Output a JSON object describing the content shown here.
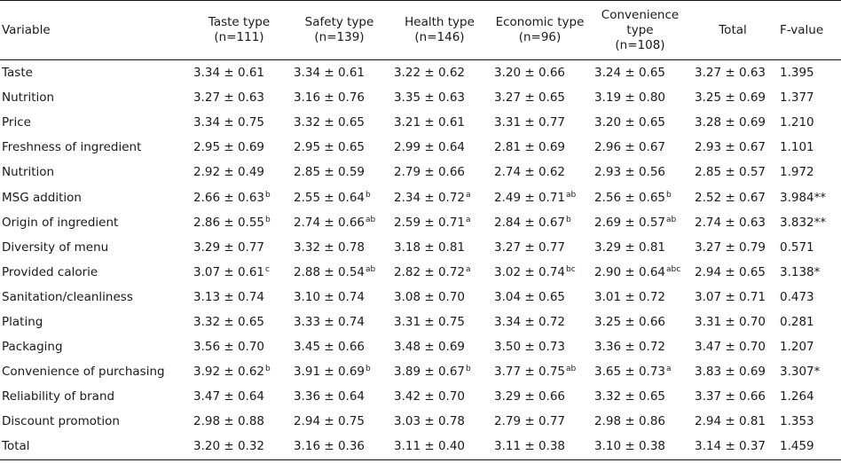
{
  "table": {
    "headers": [
      "Variable",
      "Taste type\n(n=111)",
      "Safety type\n(n=139)",
      "Health type\n(n=146)",
      "Economic type\n(n=96)",
      "Convenience\ntype\n(n=108)",
      "Total",
      "F-value"
    ],
    "rows": [
      {
        "label": "Taste",
        "cells": [
          [
            "3.34 ± 0.61",
            ""
          ],
          [
            "3.34 ± 0.61",
            ""
          ],
          [
            "3.22 ± 0.62",
            ""
          ],
          [
            "3.20 ± 0.66",
            ""
          ],
          [
            "3.24 ± 0.65",
            ""
          ],
          [
            "3.27 ± 0.63",
            ""
          ]
        ],
        "f": "1.395"
      },
      {
        "label": "Nutrition",
        "cells": [
          [
            "3.27 ± 0.63",
            ""
          ],
          [
            "3.16 ± 0.76",
            ""
          ],
          [
            "3.35 ± 0.63",
            ""
          ],
          [
            "3.27 ± 0.65",
            ""
          ],
          [
            "3.19 ± 0.80",
            ""
          ],
          [
            "3.25 ± 0.69",
            ""
          ]
        ],
        "f": "1.377"
      },
      {
        "label": "Price",
        "cells": [
          [
            "3.34 ± 0.75",
            ""
          ],
          [
            "3.32 ± 0.65",
            ""
          ],
          [
            "3.21 ± 0.61",
            ""
          ],
          [
            "3.31 ± 0.77",
            ""
          ],
          [
            "3.20 ± 0.65",
            ""
          ],
          [
            "3.28 ± 0.69",
            ""
          ]
        ],
        "f": "1.210"
      },
      {
        "label": "Freshness of ingredient",
        "cells": [
          [
            "2.95 ± 0.69",
            ""
          ],
          [
            "2.95 ± 0.65",
            ""
          ],
          [
            "2.99 ± 0.64",
            ""
          ],
          [
            "2.81 ± 0.69",
            ""
          ],
          [
            "2.96 ± 0.67",
            ""
          ],
          [
            "2.93 ± 0.67",
            ""
          ]
        ],
        "f": "1.101"
      },
      {
        "label": "Nutrition",
        "cells": [
          [
            "2.92 ± 0.49",
            ""
          ],
          [
            "2.85 ± 0.59",
            ""
          ],
          [
            "2.79 ± 0.66",
            ""
          ],
          [
            "2.74 ± 0.62",
            ""
          ],
          [
            "2.93 ± 0.56",
            ""
          ],
          [
            "2.85 ± 0.57",
            ""
          ]
        ],
        "f": "1.972"
      },
      {
        "label": "MSG addition",
        "cells": [
          [
            "2.66 ± 0.63",
            "b"
          ],
          [
            "2.55 ± 0.64",
            "b"
          ],
          [
            "2.34 ± 0.72",
            "a"
          ],
          [
            "2.49 ± 0.71",
            "ab"
          ],
          [
            "2.56 ± 0.65",
            "b"
          ],
          [
            "2.52 ± 0.67",
            ""
          ]
        ],
        "f": "3.984**"
      },
      {
        "label": "Origin of ingredient",
        "cells": [
          [
            "2.86 ± 0.55",
            "b"
          ],
          [
            "2.74 ± 0.66",
            "ab"
          ],
          [
            "2.59 ± 0.71",
            "a"
          ],
          [
            "2.84 ± 0.67",
            "b"
          ],
          [
            "2.69 ± 0.57",
            "ab"
          ],
          [
            "2.74 ± 0.63",
            ""
          ]
        ],
        "f": "3.832**"
      },
      {
        "label": "Diversity of menu",
        "cells": [
          [
            "3.29 ± 0.77",
            ""
          ],
          [
            "3.32 ± 0.78",
            ""
          ],
          [
            "3.18 ± 0.81",
            ""
          ],
          [
            "3.27 ± 0.77",
            ""
          ],
          [
            "3.29 ± 0.81",
            ""
          ],
          [
            "3.27 ± 0.79",
            ""
          ]
        ],
        "f": "0.571"
      },
      {
        "label": "Provided calorie",
        "cells": [
          [
            "3.07 ± 0.61",
            "c"
          ],
          [
            "2.88 ± 0.54",
            "ab"
          ],
          [
            "2.82 ± 0.72",
            "a"
          ],
          [
            "3.02 ± 0.74",
            "bc"
          ],
          [
            "2.90 ± 0.64",
            "abc"
          ],
          [
            "2.94 ± 0.65",
            ""
          ]
        ],
        "f": "3.138*"
      },
      {
        "label": "Sanitation/cleanliness",
        "cells": [
          [
            "3.13 ± 0.74",
            ""
          ],
          [
            "3.10 ± 0.74",
            ""
          ],
          [
            "3.08 ± 0.70",
            ""
          ],
          [
            "3.04 ± 0.65",
            ""
          ],
          [
            "3.01 ± 0.72",
            ""
          ],
          [
            "3.07 ± 0.71",
            ""
          ]
        ],
        "f": "0.473"
      },
      {
        "label": "Plating",
        "cells": [
          [
            "3.32 ± 0.65",
            ""
          ],
          [
            "3.33 ± 0.74",
            ""
          ],
          [
            "3.31 ± 0.75",
            ""
          ],
          [
            "3.34 ± 0.72",
            ""
          ],
          [
            "3.25 ± 0.66",
            ""
          ],
          [
            "3.31 ± 0.70",
            ""
          ]
        ],
        "f": "0.281"
      },
      {
        "label": "Packaging",
        "cells": [
          [
            "3.56 ± 0.70",
            ""
          ],
          [
            "3.45 ± 0.66",
            ""
          ],
          [
            "3.48 ± 0.69",
            ""
          ],
          [
            "3.50 ± 0.73",
            ""
          ],
          [
            "3.36 ± 0.72",
            ""
          ],
          [
            "3.47 ± 0.70",
            ""
          ]
        ],
        "f": "1.207"
      },
      {
        "label": "Convenience of purchasing",
        "cells": [
          [
            "3.92 ± 0.62",
            "b"
          ],
          [
            "3.91 ± 0.69",
            "b"
          ],
          [
            "3.89 ± 0.67",
            "b"
          ],
          [
            "3.77 ± 0.75",
            "ab"
          ],
          [
            "3.65 ± 0.73",
            "a"
          ],
          [
            "3.83 ± 0.69",
            ""
          ]
        ],
        "f": "3.307*"
      },
      {
        "label": "Reliability of brand",
        "cells": [
          [
            "3.47 ± 0.64",
            ""
          ],
          [
            "3.36 ± 0.64",
            ""
          ],
          [
            "3.42 ± 0.70",
            ""
          ],
          [
            "3.29 ± 0.66",
            ""
          ],
          [
            "3.32 ± 0.65",
            ""
          ],
          [
            "3.37 ± 0.66",
            ""
          ]
        ],
        "f": "1.264"
      },
      {
        "label": "Discount promotion",
        "cells": [
          [
            "2.98 ± 0.88",
            ""
          ],
          [
            "2.94 ± 0.75",
            ""
          ],
          [
            "3.03 ± 0.78",
            ""
          ],
          [
            "2.79 ± 0.77",
            ""
          ],
          [
            "2.98 ± 0.86",
            ""
          ],
          [
            "2.94 ± 0.81",
            ""
          ]
        ],
        "f": "1.353"
      },
      {
        "label": "Total",
        "cells": [
          [
            "3.20 ± 0.32",
            ""
          ],
          [
            "3.16 ± 0.36",
            ""
          ],
          [
            "3.11 ± 0.40",
            ""
          ],
          [
            "3.11 ± 0.38",
            ""
          ],
          [
            "3.10 ± 0.38",
            ""
          ],
          [
            "3.14 ± 0.37",
            ""
          ]
        ],
        "f": "1.459"
      }
    ]
  }
}
